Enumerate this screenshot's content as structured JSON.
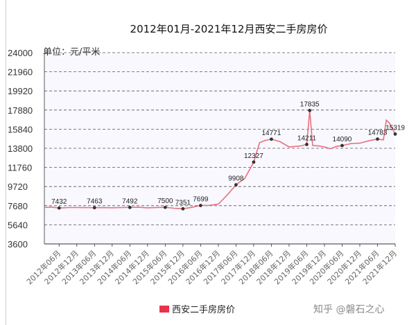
{
  "watermark": "知乎 @磐石之心",
  "chart_data": {
    "type": "line",
    "title": "2012年01月-2021年12月西安二手房房价",
    "unit_label": "单位：元/平米",
    "ylim": [
      3600,
      24000
    ],
    "yticks": [
      3600,
      5640,
      7680,
      9720,
      11760,
      13800,
      15840,
      17880,
      19920,
      21960,
      24000
    ],
    "grid": true,
    "legend_position": "bottom",
    "line_color": "#e8707d",
    "legend_color": "#e8334a",
    "xticks": [
      "2012年06月",
      "2012年12月",
      "2013年06月",
      "2013年12月",
      "2014年06月",
      "2014年12月",
      "2015年06月",
      "2015年12月",
      "2016年06月",
      "2016年12月",
      "2017年06月",
      "2017年12月",
      "2018年06月",
      "2018年12月",
      "2019年06月",
      "2019年12月",
      "2020年06月",
      "2020年12月",
      "2021年06月",
      "2021年12月"
    ],
    "series": [
      {
        "name": "西安二手房房价",
        "x": [
          "2012-01",
          "2012-03",
          "2012-06",
          "2012-09",
          "2012-12",
          "2013-03",
          "2013-06",
          "2013-09",
          "2013-12",
          "2014-03",
          "2014-06",
          "2014-09",
          "2014-12",
          "2015-03",
          "2015-06",
          "2015-09",
          "2015-12",
          "2016-03",
          "2016-06",
          "2016-09",
          "2016-12",
          "2017-03",
          "2017-06",
          "2017-09",
          "2017-12",
          "2018-02",
          "2018-04",
          "2018-06",
          "2018-09",
          "2018-12",
          "2019-02",
          "2019-04",
          "2019-06",
          "2019-07",
          "2019-08",
          "2019-10",
          "2019-12",
          "2020-02",
          "2020-04",
          "2020-06",
          "2020-09",
          "2020-12",
          "2021-03",
          "2021-06",
          "2021-08",
          "2021-09",
          "2021-10",
          "2021-12"
        ],
        "values": [
          7480,
          7530,
          7432,
          7480,
          7480,
          7470,
          7463,
          7470,
          7460,
          7480,
          7492,
          7510,
          7450,
          7490,
          7500,
          7410,
          7351,
          7500,
          7699,
          7720,
          7850,
          8800,
          9908,
          10600,
          12327,
          14400,
          14650,
          14771,
          14500,
          13950,
          14000,
          14050,
          14211,
          17835,
          14100,
          14050,
          13950,
          13750,
          14000,
          14090,
          14300,
          14350,
          14600,
          14783,
          14700,
          16800,
          16500,
          15319
        ]
      }
    ],
    "data_labels": [
      {
        "x": "2012-06",
        "value": 7432,
        "text": "7432"
      },
      {
        "x": "2013-06",
        "value": 7463,
        "text": "7463"
      },
      {
        "x": "2014-06",
        "value": 7492,
        "text": "7492"
      },
      {
        "x": "2015-06",
        "value": 7500,
        "text": "7500"
      },
      {
        "x": "2015-12",
        "value": 7351,
        "text": "7351"
      },
      {
        "x": "2016-06",
        "value": 7699,
        "text": "7699"
      },
      {
        "x": "2017-06",
        "value": 9908,
        "text": "9908"
      },
      {
        "x": "2017-12",
        "value": 12327,
        "text": "12327"
      },
      {
        "x": "2018-06",
        "value": 14771,
        "text": "14771"
      },
      {
        "x": "2019-06",
        "value": 14211,
        "text": "14211"
      },
      {
        "x": "2019-07",
        "value": 17835,
        "text": "17835"
      },
      {
        "x": "2020-06",
        "value": 14090,
        "text": "14090"
      },
      {
        "x": "2021-06",
        "value": 14783,
        "text": "14783"
      },
      {
        "x": "2021-12",
        "value": 15319,
        "text": "15319"
      }
    ]
  }
}
